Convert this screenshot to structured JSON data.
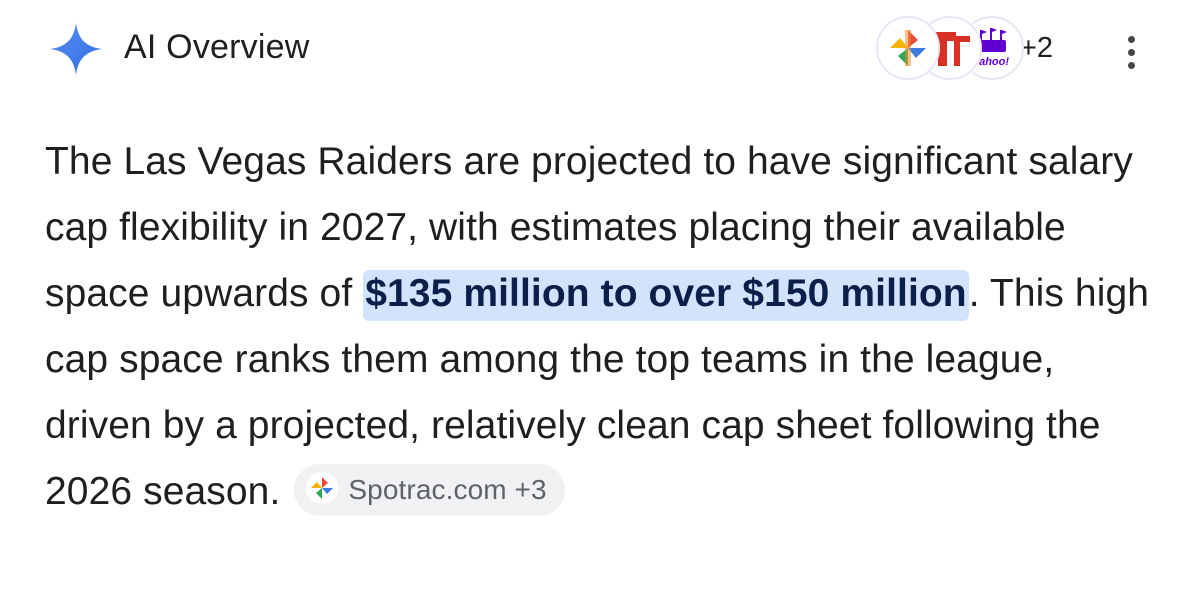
{
  "header": {
    "title": "AI Overview",
    "sources_more": "+2",
    "source_icons": [
      "spotrac-icon",
      "raiders-tribune-icon",
      "yahoo-sports-icon"
    ],
    "yahoo_label": "yahoo!"
  },
  "body": {
    "text_before": "The Las Vegas Raiders are projected to have significant salary cap flexibility in 2027, with estimates placing their available space upwards of ",
    "highlight": "$135 million to over $150 million",
    "text_after": ". This high cap space ranks them among the top teams in the league, driven by a projected, relatively clean cap sheet following the 2026 season.",
    "citation_chip": {
      "label": "Spotrac.com +3"
    }
  },
  "colors": {
    "accent_blue": "#4285f4",
    "highlight_bg": "#d3e3fd",
    "highlight_text": "#0b1f4a",
    "chip_bg": "#f0f1f3"
  }
}
